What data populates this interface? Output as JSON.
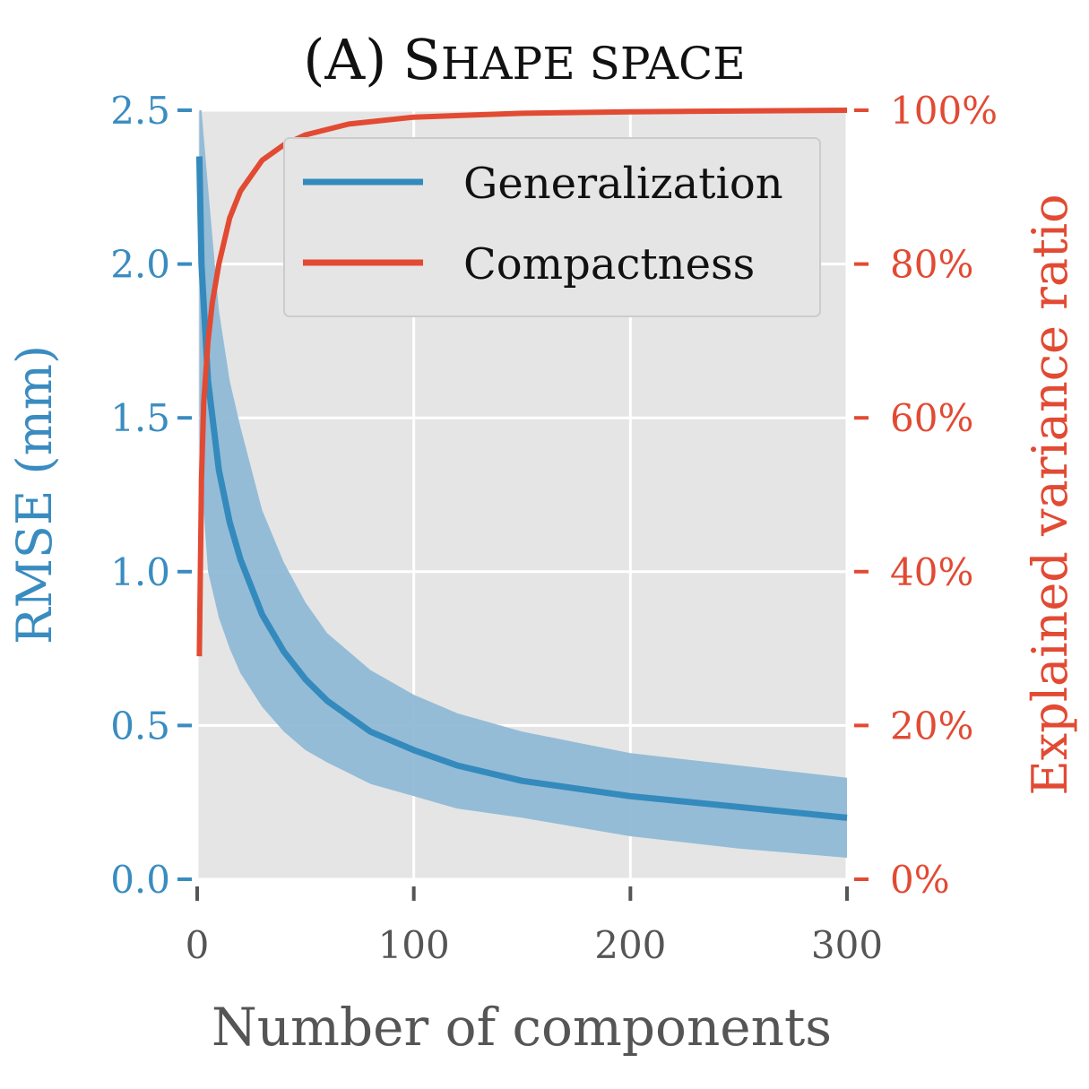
{
  "chart_data": {
    "type": "line",
    "title": "(A) Shape space",
    "title_prefix": "(A)",
    "title_smallcaps": "Shape space",
    "xlabel": "Number of components",
    "ylabel_left": "RMSE (mm)",
    "ylabel_right": "Explained variance ratio",
    "xlim": [
      0,
      300
    ],
    "ylim_left": [
      0,
      2.5
    ],
    "ylim_right": [
      0,
      100
    ],
    "x_ticks": [
      0,
      100,
      200,
      300
    ],
    "x_tick_labels": [
      "0",
      "100",
      "200",
      "300"
    ],
    "y_left_ticks": [
      0,
      0.5,
      1.0,
      1.5,
      2.0,
      2.5
    ],
    "y_left_tick_labels": [
      "0.0",
      "0.5",
      "1.0",
      "1.5",
      "2.0",
      "2.5"
    ],
    "y_right_ticks": [
      0,
      20,
      40,
      60,
      80,
      100
    ],
    "y_right_tick_labels": [
      "0%",
      "20%",
      "40%",
      "60%",
      "80%",
      "100%"
    ],
    "grid": true,
    "legend_position": "top-right",
    "colors": {
      "generalization": "#348abd",
      "band": "#8fb9d6",
      "compactness": "#e24a33",
      "panel": "#e5e5e5"
    },
    "series": [
      {
        "name": "Generalization",
        "axis": "left",
        "x": [
          1,
          2,
          5,
          10,
          15,
          20,
          30,
          40,
          50,
          60,
          80,
          100,
          120,
          150,
          200,
          250,
          300
        ],
        "values": [
          2.35,
          2.0,
          1.62,
          1.33,
          1.16,
          1.04,
          0.86,
          0.74,
          0.65,
          0.58,
          0.48,
          0.42,
          0.37,
          0.32,
          0.27,
          0.235,
          0.2
        ],
        "lower": [
          1.4,
          1.3,
          1.0,
          0.85,
          0.75,
          0.67,
          0.56,
          0.48,
          0.42,
          0.38,
          0.31,
          0.27,
          0.23,
          0.2,
          0.14,
          0.1,
          0.07
        ],
        "upper": [
          2.5,
          2.5,
          2.25,
          1.85,
          1.62,
          1.47,
          1.2,
          1.03,
          0.9,
          0.8,
          0.68,
          0.6,
          0.54,
          0.48,
          0.41,
          0.37,
          0.33
        ]
      },
      {
        "name": "Compactness",
        "axis": "right",
        "x": [
          1,
          2,
          3,
          5,
          7,
          10,
          15,
          20,
          30,
          40,
          50,
          70,
          100,
          150,
          200,
          300
        ],
        "values": [
          29,
          52,
          62,
          70,
          75,
          80,
          86,
          89.5,
          93.5,
          95.5,
          96.8,
          98.2,
          99.1,
          99.6,
          99.8,
          100
        ]
      }
    ]
  },
  "legend": [
    {
      "name": "Generalization",
      "color": "#348abd"
    },
    {
      "name": "Compactness",
      "color": "#e24a33"
    }
  ]
}
